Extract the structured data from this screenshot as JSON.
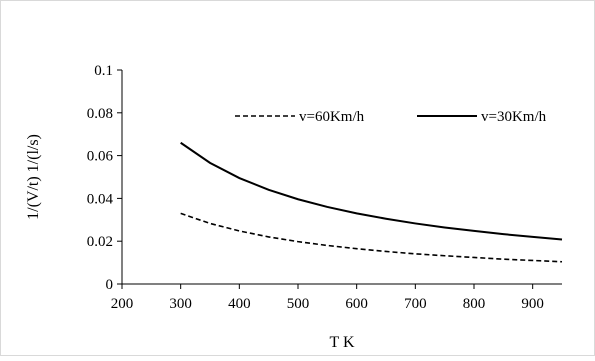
{
  "chart_data": {
    "type": "line",
    "title": "",
    "xlabel": "T K",
    "ylabel": "1/(V/t) 1/(l/s)",
    "xlim": [
      200,
      950
    ],
    "ylim": [
      0,
      0.1
    ],
    "x_ticks": [
      "200",
      "300",
      "400",
      "500",
      "600",
      "700",
      "800",
      "900"
    ],
    "y_ticks": [
      "0",
      "0.02",
      "0.04",
      "0.06",
      "0.08",
      "0.1"
    ],
    "grid": false,
    "legend_position": "top-right",
    "series": [
      {
        "name": "v=60Km/h",
        "style": "dashed",
        "x": [
          300,
          350,
          400,
          450,
          500,
          550,
          600,
          650,
          700,
          750,
          800,
          850,
          900,
          950
        ],
        "y": [
          0.033,
          0.0283,
          0.0248,
          0.022,
          0.0198,
          0.018,
          0.0165,
          0.0152,
          0.0141,
          0.0132,
          0.0124,
          0.0116,
          0.011,
          0.0104
        ]
      },
      {
        "name": "v=30Km/h",
        "style": "solid",
        "x": [
          300,
          350,
          400,
          450,
          500,
          550,
          600,
          650,
          700,
          750,
          800,
          850,
          900,
          950
        ],
        "y": [
          0.066,
          0.0566,
          0.0495,
          0.044,
          0.0396,
          0.036,
          0.033,
          0.0305,
          0.0283,
          0.0264,
          0.0248,
          0.0233,
          0.022,
          0.0208
        ]
      }
    ]
  }
}
